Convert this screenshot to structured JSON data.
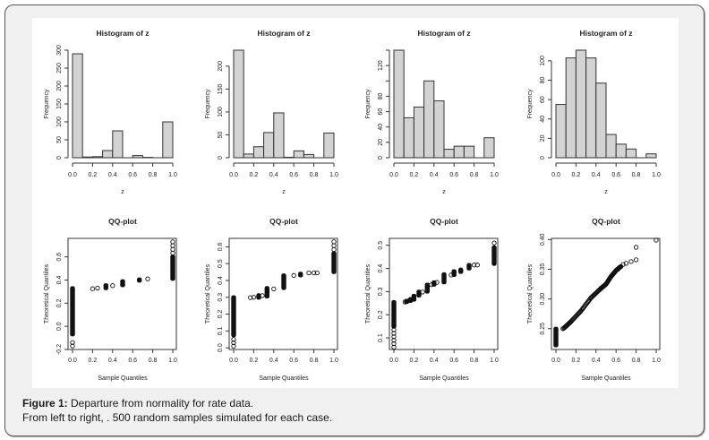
{
  "caption": {
    "label": "Figure 1:",
    "line1": " Departure from normality for rate data.",
    "line2": "From left to right,   . 500 random samples simulated for each case."
  },
  "chart_data": [
    {
      "type": "bar",
      "title": "Histogram of z",
      "xlabel": "z",
      "ylabel": "Frequency",
      "bin_edges": [
        0.0,
        0.1,
        0.2,
        0.3,
        0.4,
        0.5,
        0.6,
        0.7,
        0.8,
        0.9,
        1.0
      ],
      "values": [
        290,
        2,
        3,
        20,
        75,
        0,
        6,
        1,
        0,
        100
      ],
      "xlim": [
        0,
        1
      ],
      "ylim": [
        0,
        300
      ],
      "xticks": [
        "0.0",
        "0.2",
        "0.4",
        "0.6",
        "0.8",
        "1.0"
      ],
      "yticks": [
        "0",
        "50",
        "100",
        "150",
        "200",
        "250",
        "300"
      ]
    },
    {
      "type": "bar",
      "title": "Histogram of z",
      "xlabel": "z",
      "ylabel": "Frequency",
      "bin_edges": [
        0.0,
        0.1,
        0.2,
        0.3,
        0.4,
        0.5,
        0.6,
        0.7,
        0.8,
        0.9,
        1.0
      ],
      "values": [
        235,
        8,
        24,
        55,
        98,
        1,
        15,
        7,
        0,
        54
      ],
      "xlim": [
        0,
        1
      ],
      "ylim": [
        0,
        235
      ],
      "xticks": [
        "0.0",
        "0.2",
        "0.4",
        "0.6",
        "0.8",
        "1.0"
      ],
      "yticks": [
        "0",
        "50",
        "100",
        "150",
        "200"
      ]
    },
    {
      "type": "bar",
      "title": "Histogram of z",
      "xlabel": "z",
      "ylabel": "Frequency",
      "bin_edges": [
        0.0,
        0.1,
        0.2,
        0.3,
        0.4,
        0.5,
        0.6,
        0.7,
        0.8,
        0.9,
        1.0
      ],
      "values": [
        140,
        52,
        66,
        100,
        74,
        11,
        15,
        15,
        0,
        26
      ],
      "xlim": [
        0,
        1
      ],
      "ylim": [
        0,
        140
      ],
      "xticks": [
        "0.0",
        "0.2",
        "0.4",
        "0.6",
        "0.8",
        "1.0"
      ],
      "yticks": [
        "0",
        "20",
        "40",
        "60",
        "80",
        "",
        "120",
        ""
      ]
    },
    {
      "type": "bar",
      "title": "Histogram of z",
      "xlabel": "z",
      "ylabel": "Frequency",
      "bin_edges": [
        0.0,
        0.1,
        0.2,
        0.3,
        0.4,
        0.5,
        0.6,
        0.7,
        0.8,
        0.9,
        1.0
      ],
      "values": [
        55,
        103,
        111,
        103,
        77,
        24,
        14,
        9,
        0,
        4
      ],
      "xlim": [
        0,
        1
      ],
      "ylim": [
        0,
        111
      ],
      "xticks": [
        "0.0",
        "0.2",
        "0.4",
        "0.6",
        "0.8",
        "1.0"
      ],
      "yticks": [
        "0",
        "20",
        "40",
        "60",
        "80",
        "100"
      ]
    },
    {
      "type": "scatter",
      "title": "QQ-plot",
      "xlabel": "Sample Quantiles",
      "ylabel": "Theoretical Quantiles",
      "xlim": [
        0,
        1
      ],
      "ylim": [
        -0.2,
        0.76
      ],
      "xticks": [
        "0.0",
        "0.2",
        "0.4",
        "0.6",
        "0.8",
        "1.0"
      ],
      "yticks": [
        "-0.2",
        "0.0",
        "0.2",
        "0.4",
        "0.6"
      ],
      "ytick_values": [
        -0.2,
        0.0,
        0.2,
        0.4,
        0.6
      ],
      "groups": [
        {
          "x": 0.0,
          "y_from": -0.07,
          "y_to": 0.33,
          "dense": true
        },
        {
          "x": 0.0,
          "y_from": -0.17,
          "y_to": -0.14,
          "dense": false
        },
        {
          "x": 0.2,
          "y_from": 0.325,
          "y_to": 0.325,
          "dense": false
        },
        {
          "x": 0.25,
          "y_from": 0.33,
          "y_to": 0.33,
          "dense": false
        },
        {
          "x": 0.333,
          "y_from": 0.33,
          "y_to": 0.355,
          "dense": true
        },
        {
          "x": 0.4,
          "y_from": 0.352,
          "y_to": 0.352,
          "dense": false
        },
        {
          "x": 0.5,
          "y_from": 0.355,
          "y_to": 0.39,
          "dense": true
        },
        {
          "x": 0.667,
          "y_from": 0.395,
          "y_to": 0.405,
          "dense": true
        },
        {
          "x": 0.75,
          "y_from": 0.41,
          "y_to": 0.41,
          "dense": false
        },
        {
          "x": 1.0,
          "y_from": 0.41,
          "y_to": 0.6,
          "dense": true
        },
        {
          "x": 1.0,
          "y_from": 0.6,
          "y_to": 0.73,
          "dense": false
        }
      ]
    },
    {
      "type": "scatter",
      "title": "QQ-plot",
      "xlabel": "Sample Quantiles",
      "ylabel": "Theoretical Quantiles",
      "xlim": [
        0,
        1
      ],
      "ylim": [
        -0.01,
        0.65
      ],
      "xticks": [
        "0.0",
        "0.2",
        "0.4",
        "0.6",
        "0.8",
        "1.0"
      ],
      "yticks": [
        "0.0",
        "0.1",
        "0.2",
        "0.3",
        "0.4",
        "0.5",
        "0.6"
      ],
      "ytick_values": [
        0.0,
        0.1,
        0.2,
        0.3,
        0.4,
        0.5,
        0.6
      ],
      "groups": [
        {
          "x": 0.0,
          "y_from": 0.075,
          "y_to": 0.3,
          "dense": true
        },
        {
          "x": 0.0,
          "y_from": 0.01,
          "y_to": 0.05,
          "dense": false
        },
        {
          "x": 0.167,
          "y_from": 0.298,
          "y_to": 0.298,
          "dense": false
        },
        {
          "x": 0.2,
          "y_from": 0.3,
          "y_to": 0.3,
          "dense": false
        },
        {
          "x": 0.25,
          "y_from": 0.298,
          "y_to": 0.312,
          "dense": true
        },
        {
          "x": 0.286,
          "y_from": 0.31,
          "y_to": 0.31,
          "dense": false
        },
        {
          "x": 0.333,
          "y_from": 0.305,
          "y_to": 0.355,
          "dense": true
        },
        {
          "x": 0.4,
          "y_from": 0.35,
          "y_to": 0.35,
          "dense": false
        },
        {
          "x": 0.5,
          "y_from": 0.355,
          "y_to": 0.43,
          "dense": true
        },
        {
          "x": 0.6,
          "y_from": 0.43,
          "y_to": 0.43,
          "dense": false
        },
        {
          "x": 0.667,
          "y_from": 0.43,
          "y_to": 0.44,
          "dense": true
        },
        {
          "x": 0.75,
          "y_from": 0.445,
          "y_to": 0.445,
          "dense": false
        },
        {
          "x": 0.8,
          "y_from": 0.445,
          "y_to": 0.445,
          "dense": false
        },
        {
          "x": 0.833,
          "y_from": 0.445,
          "y_to": 0.445,
          "dense": false
        },
        {
          "x": 1.0,
          "y_from": 0.45,
          "y_to": 0.56,
          "dense": true
        },
        {
          "x": 1.0,
          "y_from": 0.56,
          "y_to": 0.63,
          "dense": false
        }
      ]
    },
    {
      "type": "scatter",
      "title": "QQ-plot",
      "xlabel": "Sample Quantiles",
      "ylabel": "Theoretical Quantiles",
      "xlim": [
        0,
        1
      ],
      "ylim": [
        0.05,
        0.53
      ],
      "xticks": [
        "0.0",
        "0.2",
        "0.4",
        "0.6",
        "0.8",
        "1.0"
      ],
      "yticks": [
        "0.1",
        "0.2",
        "0.3",
        "0.4",
        "0.5"
      ],
      "ytick_values": [
        0.1,
        0.2,
        0.3,
        0.4,
        0.5
      ],
      "groups": [
        {
          "x": 0.0,
          "y_from": 0.15,
          "y_to": 0.255,
          "dense": true
        },
        {
          "x": 0.0,
          "y_from": 0.06,
          "y_to": 0.15,
          "dense": false
        },
        {
          "x": 0.111,
          "y_from": 0.255,
          "y_to": 0.255,
          "dense": false
        },
        {
          "x": 0.125,
          "y_from": 0.255,
          "y_to": 0.26,
          "dense": true
        },
        {
          "x": 0.143,
          "y_from": 0.26,
          "y_to": 0.26,
          "dense": false
        },
        {
          "x": 0.167,
          "y_from": 0.26,
          "y_to": 0.268,
          "dense": true
        },
        {
          "x": 0.2,
          "y_from": 0.265,
          "y_to": 0.282,
          "dense": true
        },
        {
          "x": 0.25,
          "y_from": 0.283,
          "y_to": 0.3,
          "dense": true
        },
        {
          "x": 0.286,
          "y_from": 0.298,
          "y_to": 0.298,
          "dense": false
        },
        {
          "x": 0.333,
          "y_from": 0.3,
          "y_to": 0.33,
          "dense": true
        },
        {
          "x": 0.375,
          "y_from": 0.33,
          "y_to": 0.33,
          "dense": false
        },
        {
          "x": 0.4,
          "y_from": 0.33,
          "y_to": 0.34,
          "dense": true
        },
        {
          "x": 0.429,
          "y_from": 0.34,
          "y_to": 0.34,
          "dense": false
        },
        {
          "x": 0.5,
          "y_from": 0.34,
          "y_to": 0.375,
          "dense": true
        },
        {
          "x": 0.571,
          "y_from": 0.372,
          "y_to": 0.372,
          "dense": false
        },
        {
          "x": 0.6,
          "y_from": 0.372,
          "y_to": 0.388,
          "dense": true
        },
        {
          "x": 0.667,
          "y_from": 0.385,
          "y_to": 0.395,
          "dense": true
        },
        {
          "x": 0.75,
          "y_from": 0.4,
          "y_to": 0.415,
          "dense": true
        },
        {
          "x": 0.8,
          "y_from": 0.415,
          "y_to": 0.415,
          "dense": false
        },
        {
          "x": 0.833,
          "y_from": 0.415,
          "y_to": 0.415,
          "dense": false
        },
        {
          "x": 1.0,
          "y_from": 0.42,
          "y_to": 0.49,
          "dense": true
        },
        {
          "x": 1.0,
          "y_from": 0.49,
          "y_to": 0.51,
          "dense": false
        }
      ]
    },
    {
      "type": "scatter",
      "title": "QQ-plot",
      "xlabel": "Sample Quantiles",
      "ylabel": "Theoretical Quantiles",
      "xlim": [
        0,
        1
      ],
      "ylim": [
        0.215,
        0.402
      ],
      "xticks": [
        "0.0",
        "0.2",
        "0.4",
        "0.6",
        "0.8",
        "1.0"
      ],
      "yticks": [
        "0.25",
        "0.30",
        "0.35",
        "0.40"
      ],
      "ytick_values": [
        0.25,
        0.3,
        0.35,
        0.4
      ],
      "groups": [
        {
          "x": 0.0,
          "y_from": 0.222,
          "y_to": 0.25,
          "dense": true
        },
        {
          "x": 0.07,
          "y_from": 0.25,
          "y_to": 0.25,
          "dense": false
        },
        {
          "curve": true,
          "points": [
            [
              0.08,
              0.251
            ],
            [
              0.15,
              0.262
            ],
            [
              0.25,
              0.28
            ],
            [
              0.35,
              0.302
            ],
            [
              0.45,
              0.318
            ],
            [
              0.5,
              0.325
            ],
            [
              0.55,
              0.338
            ],
            [
              0.6,
              0.348
            ],
            [
              0.65,
              0.355
            ]
          ]
        },
        {
          "x": 0.67,
          "y_from": 0.358,
          "y_to": 0.358,
          "dense": false
        },
        {
          "x": 0.7,
          "y_from": 0.36,
          "y_to": 0.36,
          "dense": false
        },
        {
          "x": 0.75,
          "y_from": 0.363,
          "y_to": 0.363,
          "dense": false
        },
        {
          "x": 0.8,
          "y_from": 0.366,
          "y_to": 0.369,
          "dense": false
        },
        {
          "x": 0.8,
          "y_from": 0.387,
          "y_to": 0.387,
          "dense": false
        },
        {
          "x": 1.0,
          "y_from": 0.399,
          "y_to": 0.399,
          "dense": false
        }
      ]
    }
  ]
}
